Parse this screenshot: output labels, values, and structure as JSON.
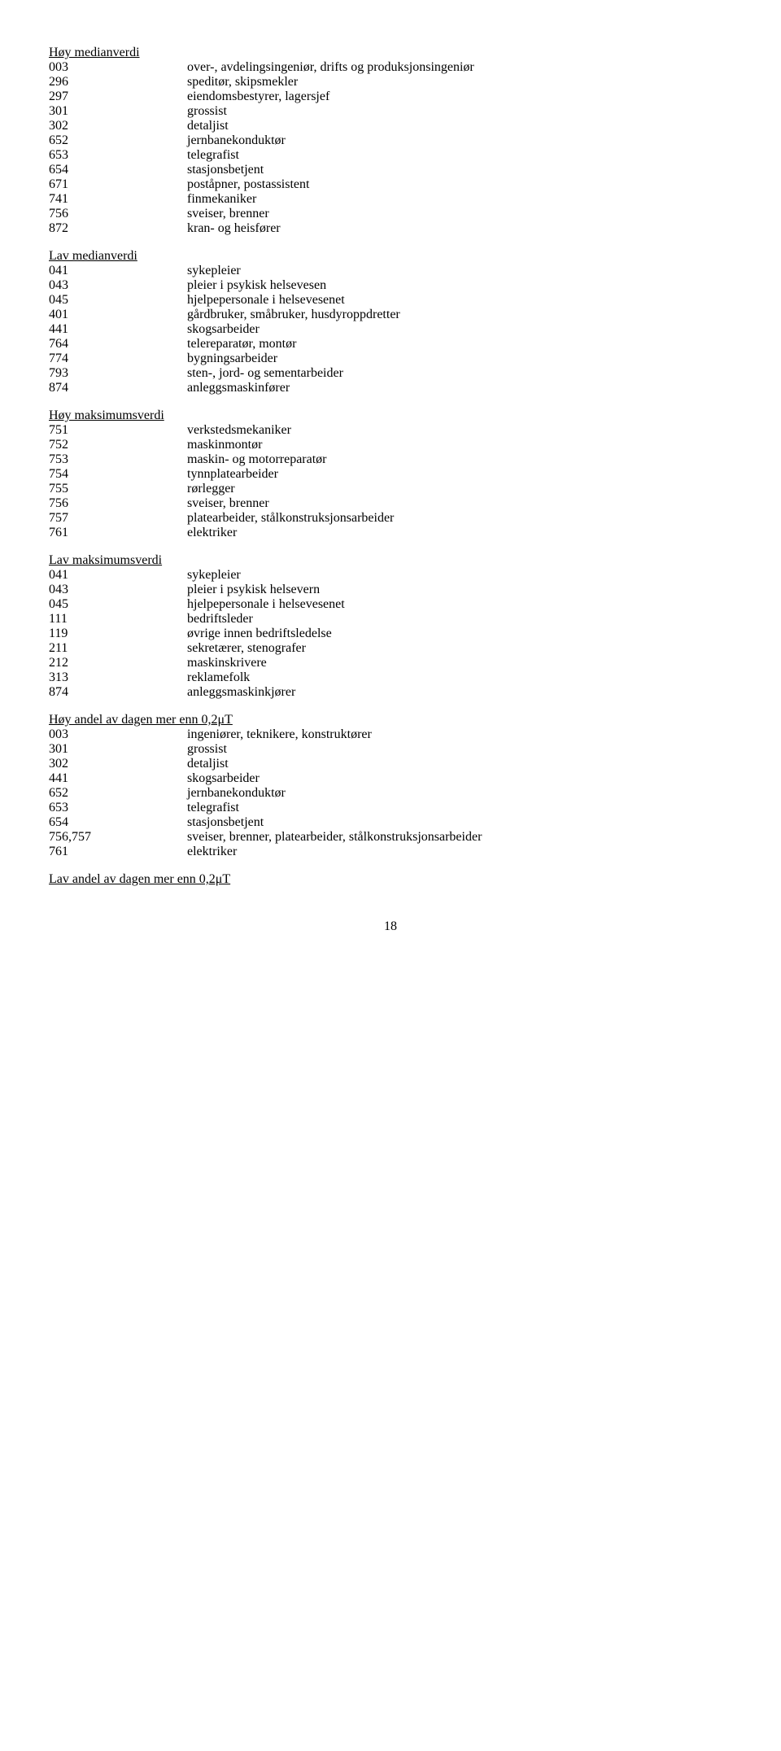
{
  "sections": [
    {
      "heading": "Høy medianverdi",
      "rows": [
        {
          "code": "003",
          "label": "over-, avdelingsingeniør, drifts og produksjonsingeniør"
        },
        {
          "code": "296",
          "label": "speditør, skipsmekler"
        },
        {
          "code": "297",
          "label": "eiendomsbestyrer, lagersjef"
        },
        {
          "code": "301",
          "label": "grossist"
        },
        {
          "code": "302",
          "label": "detaljist"
        },
        {
          "code": "652",
          "label": "jernbanekonduktør"
        },
        {
          "code": "653",
          "label": "telegrafist"
        },
        {
          "code": "654",
          "label": "stasjonsbetjent"
        },
        {
          "code": "671",
          "label": "poståpner, postassistent"
        },
        {
          "code": "741",
          "label": "finmekaniker"
        },
        {
          "code": "756",
          "label": "sveiser, brenner"
        },
        {
          "code": "872",
          "label": "kran- og heisfører"
        }
      ]
    },
    {
      "heading": "Lav medianverdi",
      "rows": [
        {
          "code": "041",
          "label": "sykepleier"
        },
        {
          "code": "043",
          "label": "pleier i psykisk helsevesen"
        },
        {
          "code": "045",
          "label": "hjelpepersonale i helsevesenet"
        },
        {
          "code": "401",
          "label": "gårdbruker, småbruker, husdyroppdretter"
        },
        {
          "code": "441",
          "label": "skogsarbeider"
        },
        {
          "code": "764",
          "label": "telereparatør, montør"
        },
        {
          "code": "774",
          "label": "bygningsarbeider"
        },
        {
          "code": "793",
          "label": "sten-, jord- og sementarbeider"
        },
        {
          "code": "874",
          "label": "anleggsmaskinfører"
        }
      ]
    },
    {
      "heading": "Høy maksimumsverdi",
      "rows": [
        {
          "code": "751",
          "label": "verkstedsmekaniker"
        },
        {
          "code": "752",
          "label": "maskinmontør"
        },
        {
          "code": "753",
          "label": "maskin- og motorreparatør"
        },
        {
          "code": "754",
          "label": "tynnplatearbeider"
        },
        {
          "code": "755",
          "label": "rørlegger"
        },
        {
          "code": "756",
          "label": "sveiser, brenner"
        },
        {
          "code": "757",
          "label": "platearbeider, stålkonstruksjonsarbeider"
        },
        {
          "code": "761",
          "label": "elektriker"
        }
      ]
    },
    {
      "heading": "Lav maksimumsverdi",
      "rows": [
        {
          "code": "041",
          "label": "sykepleier"
        },
        {
          "code": "043",
          "label": "pleier i psykisk helsevern"
        },
        {
          "code": "045",
          "label": "hjelpepersonale i helsevesenet"
        },
        {
          "code": "111",
          "label": "bedriftsleder"
        },
        {
          "code": "119",
          "label": "øvrige innen bedriftsledelse"
        },
        {
          "code": "211",
          "label": "sekretærer, stenografer"
        },
        {
          "code": "212",
          "label": "maskinskrivere"
        },
        {
          "code": "313",
          "label": "reklamefolk"
        },
        {
          "code": "874",
          "label": "anleggsmaskinkjører"
        }
      ]
    },
    {
      "heading": "Høy andel av dagen mer enn 0,2μT",
      "rows": [
        {
          "code": "003",
          "label": "ingeniører, teknikere, konstruktører"
        },
        {
          "code": "301",
          "label": "grossist"
        },
        {
          "code": "302",
          "label": "detaljist"
        },
        {
          "code": "441",
          "label": "skogsarbeider"
        },
        {
          "code": "652",
          "label": "jernbanekonduktør"
        },
        {
          "code": "653",
          "label": "telegrafist"
        },
        {
          "code": "654",
          "label": "stasjonsbetjent"
        },
        {
          "code": "756,757",
          "label": "sveiser, brenner, platearbeider, stålkonstruksjonsarbeider"
        },
        {
          "code": "761",
          "label": "elektriker"
        }
      ]
    }
  ],
  "trailing_heading": "Lav andel av dagen mer enn 0,2μT",
  "page_number": "18"
}
